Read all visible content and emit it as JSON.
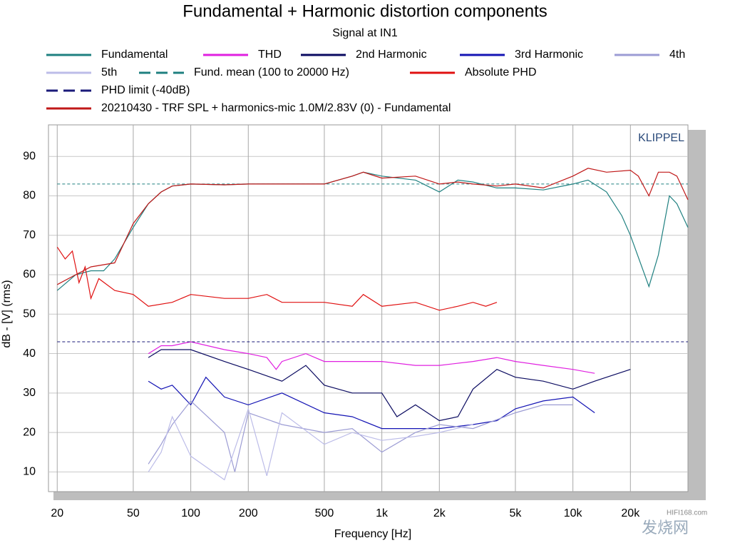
{
  "chart_data": {
    "type": "line",
    "title": "Fundamental + Harmonic distortion components",
    "subtitle": "Signal at IN1",
    "x_label": "Frequency [Hz]",
    "y_label": "dB - [V] (rms)",
    "annotation": "KLIPPEL",
    "watermark": "HIFI168.com",
    "watermark2": "发烧网",
    "log_x": true,
    "grid": true,
    "xlim": [
      18,
      40000
    ],
    "ylim": [
      5,
      98
    ],
    "xticks": [
      20,
      50,
      100,
      200,
      500,
      {
        "value": 1000,
        "label": "1k"
      },
      {
        "value": 2000,
        "label": "2k"
      },
      {
        "value": 5000,
        "label": "5k"
      },
      {
        "value": 10000,
        "label": "10k"
      },
      {
        "value": 20000,
        "label": "20k"
      }
    ],
    "yticks": [
      10,
      20,
      30,
      40,
      50,
      60,
      70,
      80,
      90
    ],
    "series": [
      {
        "name": "Fundamental",
        "color": "#1f8080",
        "x": [
          20,
          25,
          30,
          35,
          40,
          50,
          60,
          70,
          80,
          100,
          150,
          200,
          300,
          500,
          700,
          800,
          1000,
          1500,
          2000,
          2500,
          3000,
          4000,
          5000,
          7000,
          10000,
          12000,
          15000,
          18000,
          20000,
          25000,
          28000,
          32000,
          35000,
          40000
        ],
        "values": [
          56,
          60,
          61,
          61,
          64,
          72,
          78,
          81,
          82.5,
          83,
          82.8,
          83,
          83,
          83,
          85,
          86,
          85,
          84,
          81,
          84,
          83.5,
          82,
          82,
          81.5,
          83,
          84,
          81,
          75,
          70,
          57,
          65,
          80,
          78,
          72
        ]
      },
      {
        "name": "THD",
        "color": "#e020e0",
        "x": [
          60,
          70,
          80,
          100,
          150,
          200,
          250,
          280,
          300,
          400,
          500,
          700,
          1000,
          1500,
          2000,
          3000,
          4000,
          5000,
          7000,
          10000,
          13000
        ],
        "values": [
          40,
          42,
          42,
          43,
          41,
          40,
          39,
          36,
          38,
          40,
          38,
          38,
          38,
          37,
          37,
          38,
          39,
          38,
          37,
          36,
          35
        ]
      },
      {
        "name": "2nd Harmonic",
        "color": "#0a0a60",
        "x": [
          60,
          70,
          100,
          150,
          200,
          300,
          400,
          500,
          700,
          1000,
          1200,
          1500,
          2000,
          2500,
          3000,
          4000,
          5000,
          7000,
          10000,
          13000,
          15000,
          20000
        ],
        "values": [
          39,
          41,
          41,
          38,
          36,
          33,
          37,
          32,
          30,
          30,
          24,
          27,
          23,
          24,
          31,
          36,
          34,
          33,
          31,
          33,
          34,
          36
        ]
      },
      {
        "name": "3rd Harmonic",
        "color": "#1414b4",
        "x": [
          60,
          70,
          80,
          100,
          120,
          150,
          200,
          300,
          500,
          700,
          1000,
          1500,
          2000,
          3000,
          4000,
          5000,
          7000,
          10000,
          13000
        ],
        "values": [
          33,
          31,
          32,
          27,
          34,
          29,
          27,
          30,
          25,
          24,
          21,
          21,
          21,
          22,
          23,
          26,
          28,
          29,
          25
        ]
      },
      {
        "name": "4th",
        "color": "#9c9cd4",
        "x": [
          60,
          70,
          80,
          100,
          150,
          170,
          200,
          300,
          500,
          700,
          1000,
          1500,
          2000,
          3000,
          5000,
          7000,
          10000
        ],
        "values": [
          12,
          17,
          22,
          28,
          20,
          10,
          25,
          22,
          20,
          21,
          15,
          20,
          22,
          21,
          25,
          27,
          27
        ]
      },
      {
        "name": "5th",
        "color": "#bcbce8",
        "x": [
          60,
          70,
          80,
          100,
          150,
          200,
          250,
          300,
          500,
          700,
          1000,
          1500,
          2000,
          3000
        ],
        "values": [
          10,
          15,
          24,
          14,
          8,
          26,
          9,
          25,
          17,
          20,
          18,
          19,
          20,
          22
        ]
      },
      {
        "name": "Fund. mean (100 to 20000 Hz)",
        "color": "#1f8080",
        "dash": true,
        "x": [
          20,
          40000
        ],
        "values": [
          83,
          83
        ]
      },
      {
        "name": "Absolute PHD",
        "color": "#e01010",
        "x": [
          20,
          22,
          24,
          26,
          28,
          30,
          33,
          40,
          50,
          60,
          80,
          100,
          150,
          200,
          250,
          300,
          500,
          700,
          800,
          1000,
          1500,
          2000,
          2500,
          3000,
          3500,
          4000
        ],
        "values": [
          67,
          64,
          66,
          58,
          62,
          54,
          59,
          56,
          55,
          52,
          53,
          55,
          54,
          54,
          55,
          53,
          53,
          52,
          55,
          52,
          53,
          51,
          52,
          53,
          52,
          53
        ]
      },
      {
        "name": "PHD limit (-40dB)",
        "color": "#1a1a7a",
        "dash": true,
        "x": [
          20,
          40000
        ],
        "values": [
          43,
          43
        ]
      },
      {
        "name": "20210430 - TRF SPL + harmonics-mic 1.0M/2.83V (0) - Fundamental",
        "color": "#c01818",
        "x": [
          20,
          25,
          30,
          40,
          50,
          60,
          70,
          80,
          100,
          150,
          200,
          300,
          500,
          700,
          800,
          1000,
          1500,
          2000,
          2500,
          3000,
          4000,
          5000,
          7000,
          10000,
          12000,
          15000,
          20000,
          22000,
          25000,
          28000,
          32000,
          35000,
          40000
        ],
        "values": [
          57.5,
          60,
          62,
          63,
          73,
          78,
          81,
          82.5,
          83,
          82.8,
          83,
          83,
          83,
          85,
          86,
          84.5,
          85,
          83,
          83.5,
          83,
          82.5,
          83,
          82,
          85,
          87,
          86,
          86.5,
          85,
          80,
          86,
          86,
          85,
          79
        ]
      }
    ]
  }
}
